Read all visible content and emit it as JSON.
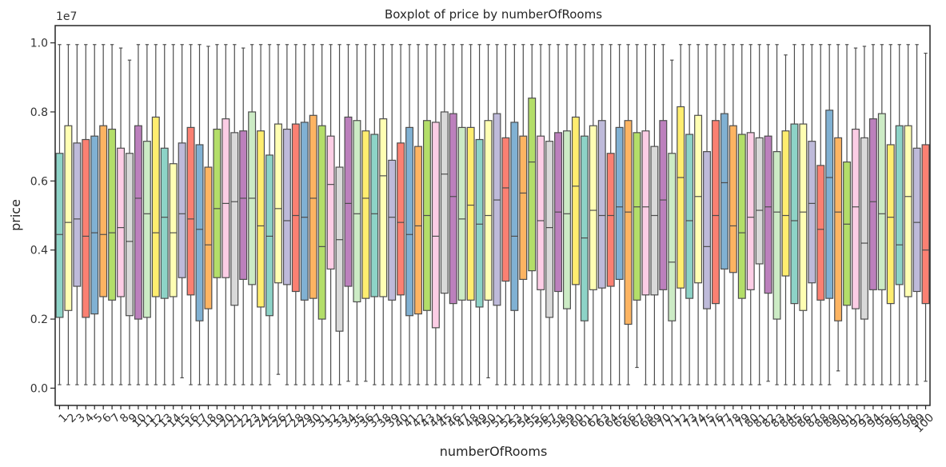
{
  "chart_data": {
    "type": "boxplot",
    "title": "Boxplot of price by numberOfRooms",
    "xlabel": "numberOfRooms",
    "ylabel": "price",
    "y_scale_note": "1e7",
    "ylim": [
      -0.05,
      1.05
    ],
    "y_ticks": [
      "0.0",
      "0.2",
      "0.4",
      "0.6",
      "0.8",
      "1.0"
    ],
    "y_tick_values": [
      0,
      0.2,
      0.4,
      0.6,
      0.8,
      1.0
    ],
    "grid": false,
    "x_tick_rotation": 45,
    "palette": [
      "#8dd3c7",
      "#ffffb3",
      "#bebada",
      "#fb8072",
      "#80b1d3",
      "#fdb462",
      "#b3de69",
      "#fccde5",
      "#d9d9d9",
      "#bc80bd",
      "#ccebc5",
      "#ffed6f"
    ],
    "categories": [
      "1",
      "2",
      "3",
      "4",
      "5",
      "6",
      "7",
      "8",
      "9",
      "10",
      "11",
      "12",
      "13",
      "14",
      "15",
      "16",
      "17",
      "18",
      "19",
      "20",
      "21",
      "22",
      "23",
      "24",
      "25",
      "26",
      "27",
      "28",
      "29",
      "30",
      "31",
      "32",
      "33",
      "34",
      "35",
      "36",
      "37",
      "38",
      "39",
      "40",
      "41",
      "42",
      "43",
      "44",
      "45",
      "46",
      "47",
      "48",
      "49",
      "50",
      "51",
      "52",
      "53",
      "54",
      "55",
      "56",
      "57",
      "58",
      "59",
      "60",
      "61",
      "62",
      "63",
      "64",
      "65",
      "66",
      "67",
      "68",
      "69",
      "70",
      "71",
      "72",
      "73",
      "74",
      "75",
      "76",
      "77",
      "78",
      "79",
      "80",
      "81",
      "82",
      "83",
      "84",
      "85",
      "86",
      "87",
      "88",
      "89",
      "90",
      "91",
      "92",
      "93",
      "94",
      "95",
      "96",
      "97",
      "98",
      "99",
      "100"
    ],
    "boxes": [
      {
        "whisker_low": 0.01,
        "q1": 0.205,
        "median": 0.445,
        "q3": 0.68,
        "whisker_high": 0.995
      },
      {
        "whisker_low": 0.01,
        "q1": 0.225,
        "median": 0.48,
        "q3": 0.76,
        "whisker_high": 0.995
      },
      {
        "whisker_low": 0.01,
        "q1": 0.295,
        "median": 0.49,
        "q3": 0.71,
        "whisker_high": 0.995
      },
      {
        "whisker_low": 0.01,
        "q1": 0.205,
        "median": 0.44,
        "q3": 0.72,
        "whisker_high": 0.995
      },
      {
        "whisker_low": 0.01,
        "q1": 0.215,
        "median": 0.45,
        "q3": 0.73,
        "whisker_high": 0.995
      },
      {
        "whisker_low": 0.01,
        "q1": 0.265,
        "median": 0.445,
        "q3": 0.76,
        "whisker_high": 0.995
      },
      {
        "whisker_low": 0.01,
        "q1": 0.255,
        "median": 0.45,
        "q3": 0.75,
        "whisker_high": 0.995
      },
      {
        "whisker_low": 0.01,
        "q1": 0.265,
        "median": 0.465,
        "q3": 0.695,
        "whisker_high": 0.985
      },
      {
        "whisker_low": 0.01,
        "q1": 0.21,
        "median": 0.425,
        "q3": 0.68,
        "whisker_high": 0.95
      },
      {
        "whisker_low": 0.01,
        "q1": 0.2,
        "median": 0.55,
        "q3": 0.76,
        "whisker_high": 0.995
      },
      {
        "whisker_low": 0.01,
        "q1": 0.205,
        "median": 0.505,
        "q3": 0.715,
        "whisker_high": 0.995
      },
      {
        "whisker_low": 0.01,
        "q1": 0.265,
        "median": 0.45,
        "q3": 0.785,
        "whisker_high": 0.995
      },
      {
        "whisker_low": 0.01,
        "q1": 0.26,
        "median": 0.495,
        "q3": 0.695,
        "whisker_high": 0.995
      },
      {
        "whisker_low": 0.01,
        "q1": 0.265,
        "median": 0.45,
        "q3": 0.65,
        "whisker_high": 0.995
      },
      {
        "whisker_low": 0.03,
        "q1": 0.32,
        "median": 0.505,
        "q3": 0.71,
        "whisker_high": 0.995
      },
      {
        "whisker_low": 0.01,
        "q1": 0.27,
        "median": 0.49,
        "q3": 0.755,
        "whisker_high": 0.995
      },
      {
        "whisker_low": 0.01,
        "q1": 0.195,
        "median": 0.46,
        "q3": 0.705,
        "whisker_high": 0.995
      },
      {
        "whisker_low": 0.01,
        "q1": 0.23,
        "median": 0.415,
        "q3": 0.64,
        "whisker_high": 0.99
      },
      {
        "whisker_low": 0.01,
        "q1": 0.32,
        "median": 0.52,
        "q3": 0.75,
        "whisker_high": 0.995
      },
      {
        "whisker_low": 0.01,
        "q1": 0.32,
        "median": 0.535,
        "q3": 0.78,
        "whisker_high": 0.995
      },
      {
        "whisker_low": 0.01,
        "q1": 0.24,
        "median": 0.54,
        "q3": 0.74,
        "whisker_high": 0.995
      },
      {
        "whisker_low": 0.01,
        "q1": 0.315,
        "median": 0.55,
        "q3": 0.745,
        "whisker_high": 0.985
      },
      {
        "whisker_low": 0.01,
        "q1": 0.3,
        "median": 0.55,
        "q3": 0.8,
        "whisker_high": 0.995
      },
      {
        "whisker_low": 0.01,
        "q1": 0.235,
        "median": 0.47,
        "q3": 0.745,
        "whisker_high": 0.995
      },
      {
        "whisker_low": 0.01,
        "q1": 0.21,
        "median": 0.44,
        "q3": 0.675,
        "whisker_high": 0.995
      },
      {
        "whisker_low": 0.04,
        "q1": 0.305,
        "median": 0.52,
        "q3": 0.765,
        "whisker_high": 0.995
      },
      {
        "whisker_low": 0.01,
        "q1": 0.3,
        "median": 0.485,
        "q3": 0.75,
        "whisker_high": 0.995
      },
      {
        "whisker_low": 0.01,
        "q1": 0.28,
        "median": 0.5,
        "q3": 0.765,
        "whisker_high": 0.995
      },
      {
        "whisker_low": 0.01,
        "q1": 0.255,
        "median": 0.495,
        "q3": 0.77,
        "whisker_high": 0.995
      },
      {
        "whisker_low": 0.01,
        "q1": 0.26,
        "median": 0.55,
        "q3": 0.79,
        "whisker_high": 0.995
      },
      {
        "whisker_low": 0.01,
        "q1": 0.2,
        "median": 0.41,
        "q3": 0.76,
        "whisker_high": 0.995
      },
      {
        "whisker_low": 0.01,
        "q1": 0.345,
        "median": 0.59,
        "q3": 0.73,
        "whisker_high": 0.995
      },
      {
        "whisker_low": 0.01,
        "q1": 0.165,
        "median": 0.43,
        "q3": 0.64,
        "whisker_high": 0.995
      },
      {
        "whisker_low": 0.02,
        "q1": 0.295,
        "median": 0.535,
        "q3": 0.785,
        "whisker_high": 0.995
      },
      {
        "whisker_low": 0.01,
        "q1": 0.25,
        "median": 0.505,
        "q3": 0.775,
        "whisker_high": 0.995
      },
      {
        "whisker_low": 0.02,
        "q1": 0.26,
        "median": 0.55,
        "q3": 0.745,
        "whisker_high": 0.995
      },
      {
        "whisker_low": 0.01,
        "q1": 0.265,
        "median": 0.505,
        "q3": 0.735,
        "whisker_high": 0.995
      },
      {
        "whisker_low": 0.01,
        "q1": 0.265,
        "median": 0.615,
        "q3": 0.78,
        "whisker_high": 0.995
      },
      {
        "whisker_low": 0.01,
        "q1": 0.255,
        "median": 0.495,
        "q3": 0.66,
        "whisker_high": 0.995
      },
      {
        "whisker_low": 0.01,
        "q1": 0.27,
        "median": 0.48,
        "q3": 0.71,
        "whisker_high": 0.995
      },
      {
        "whisker_low": 0.01,
        "q1": 0.21,
        "median": 0.445,
        "q3": 0.755,
        "whisker_high": 0.995
      },
      {
        "whisker_low": 0.01,
        "q1": 0.215,
        "median": 0.47,
        "q3": 0.7,
        "whisker_high": 0.995
      },
      {
        "whisker_low": 0.01,
        "q1": 0.225,
        "median": 0.5,
        "q3": 0.775,
        "whisker_high": 0.995
      },
      {
        "whisker_low": 0.01,
        "q1": 0.175,
        "median": 0.44,
        "q3": 0.77,
        "whisker_high": 0.995
      },
      {
        "whisker_low": 0.01,
        "q1": 0.275,
        "median": 0.62,
        "q3": 0.8,
        "whisker_high": 0.995
      },
      {
        "whisker_low": 0.01,
        "q1": 0.245,
        "median": 0.555,
        "q3": 0.795,
        "whisker_high": 0.995
      },
      {
        "whisker_low": 0.01,
        "q1": 0.255,
        "median": 0.49,
        "q3": 0.755,
        "whisker_high": 0.995
      },
      {
        "whisker_low": 0.01,
        "q1": 0.255,
        "median": 0.53,
        "q3": 0.755,
        "whisker_high": 0.995
      },
      {
        "whisker_low": 0.01,
        "q1": 0.235,
        "median": 0.475,
        "q3": 0.72,
        "whisker_high": 0.995
      },
      {
        "whisker_low": 0.03,
        "q1": 0.255,
        "median": 0.5,
        "q3": 0.775,
        "whisker_high": 0.995
      },
      {
        "whisker_low": 0.01,
        "q1": 0.24,
        "median": 0.545,
        "q3": 0.795,
        "whisker_high": 0.995
      },
      {
        "whisker_low": 0.01,
        "q1": 0.31,
        "median": 0.58,
        "q3": 0.725,
        "whisker_high": 0.995
      },
      {
        "whisker_low": 0.01,
        "q1": 0.225,
        "median": 0.44,
        "q3": 0.77,
        "whisker_high": 0.995
      },
      {
        "whisker_low": 0.01,
        "q1": 0.315,
        "median": 0.565,
        "q3": 0.73,
        "whisker_high": 0.995
      },
      {
        "whisker_low": 0.01,
        "q1": 0.34,
        "median": 0.655,
        "q3": 0.84,
        "whisker_high": 0.995
      },
      {
        "whisker_low": 0.01,
        "q1": 0.285,
        "median": 0.485,
        "q3": 0.73,
        "whisker_high": 0.995
      },
      {
        "whisker_low": 0.01,
        "q1": 0.205,
        "median": 0.465,
        "q3": 0.715,
        "whisker_high": 0.995
      },
      {
        "whisker_low": 0.01,
        "q1": 0.28,
        "median": 0.51,
        "q3": 0.74,
        "whisker_high": 0.995
      },
      {
        "whisker_low": 0.01,
        "q1": 0.23,
        "median": 0.505,
        "q3": 0.745,
        "whisker_high": 0.995
      },
      {
        "whisker_low": 0.01,
        "q1": 0.3,
        "median": 0.585,
        "q3": 0.785,
        "whisker_high": 0.995
      },
      {
        "whisker_low": 0.01,
        "q1": 0.195,
        "median": 0.435,
        "q3": 0.73,
        "whisker_high": 0.995
      },
      {
        "whisker_low": 0.01,
        "q1": 0.285,
        "median": 0.515,
        "q3": 0.76,
        "whisker_high": 0.995
      },
      {
        "whisker_low": 0.01,
        "q1": 0.29,
        "median": 0.5,
        "q3": 0.775,
        "whisker_high": 0.995
      },
      {
        "whisker_low": 0.01,
        "q1": 0.295,
        "median": 0.5,
        "q3": 0.68,
        "whisker_high": 0.995
      },
      {
        "whisker_low": 0.01,
        "q1": 0.315,
        "median": 0.525,
        "q3": 0.755,
        "whisker_high": 0.995
      },
      {
        "whisker_low": 0.01,
        "q1": 0.185,
        "median": 0.51,
        "q3": 0.775,
        "whisker_high": 0.995
      },
      {
        "whisker_low": 0.06,
        "q1": 0.255,
        "median": 0.525,
        "q3": 0.74,
        "whisker_high": 0.995
      },
      {
        "whisker_low": 0.01,
        "q1": 0.27,
        "median": 0.525,
        "q3": 0.745,
        "whisker_high": 0.995
      },
      {
        "whisker_low": 0.01,
        "q1": 0.27,
        "median": 0.5,
        "q3": 0.7,
        "whisker_high": 0.995
      },
      {
        "whisker_low": 0.01,
        "q1": 0.285,
        "median": 0.545,
        "q3": 0.775,
        "whisker_high": 0.995
      },
      {
        "whisker_low": 0.01,
        "q1": 0.195,
        "median": 0.365,
        "q3": 0.68,
        "whisker_high": 0.95
      },
      {
        "whisker_low": 0.01,
        "q1": 0.29,
        "median": 0.61,
        "q3": 0.815,
        "whisker_high": 0.995
      },
      {
        "whisker_low": 0.01,
        "q1": 0.26,
        "median": 0.485,
        "q3": 0.735,
        "whisker_high": 0.995
      },
      {
        "whisker_low": 0.01,
        "q1": 0.305,
        "median": 0.555,
        "q3": 0.79,
        "whisker_high": 0.995
      },
      {
        "whisker_low": 0.01,
        "q1": 0.23,
        "median": 0.41,
        "q3": 0.685,
        "whisker_high": 0.995
      },
      {
        "whisker_low": 0.01,
        "q1": 0.245,
        "median": 0.5,
        "q3": 0.775,
        "whisker_high": 0.995
      },
      {
        "whisker_low": 0.01,
        "q1": 0.345,
        "median": 0.595,
        "q3": 0.795,
        "whisker_high": 0.995
      },
      {
        "whisker_low": 0.01,
        "q1": 0.335,
        "median": 0.47,
        "q3": 0.76,
        "whisker_high": 0.995
      },
      {
        "whisker_low": 0.01,
        "q1": 0.26,
        "median": 0.45,
        "q3": 0.735,
        "whisker_high": 0.995
      },
      {
        "whisker_low": 0.01,
        "q1": 0.285,
        "median": 0.495,
        "q3": 0.74,
        "whisker_high": 0.995
      },
      {
        "whisker_low": 0.01,
        "q1": 0.36,
        "median": 0.515,
        "q3": 0.725,
        "whisker_high": 0.995
      },
      {
        "whisker_low": 0.02,
        "q1": 0.275,
        "median": 0.525,
        "q3": 0.73,
        "whisker_high": 0.995
      },
      {
        "whisker_low": 0.01,
        "q1": 0.2,
        "median": 0.51,
        "q3": 0.685,
        "whisker_high": 0.995
      },
      {
        "whisker_low": 0.01,
        "q1": 0.325,
        "median": 0.5,
        "q3": 0.745,
        "whisker_high": 0.965
      },
      {
        "whisker_low": 0.01,
        "q1": 0.245,
        "median": 0.485,
        "q3": 0.765,
        "whisker_high": 0.995
      },
      {
        "whisker_low": 0.01,
        "q1": 0.225,
        "median": 0.51,
        "q3": 0.765,
        "whisker_high": 0.995
      },
      {
        "whisker_low": 0.01,
        "q1": 0.305,
        "median": 0.535,
        "q3": 0.715,
        "whisker_high": 0.995
      },
      {
        "whisker_low": 0.01,
        "q1": 0.255,
        "median": 0.46,
        "q3": 0.645,
        "whisker_high": 0.995
      },
      {
        "whisker_low": 0.01,
        "q1": 0.26,
        "median": 0.61,
        "q3": 0.805,
        "whisker_high": 0.995
      },
      {
        "whisker_low": 0.05,
        "q1": 0.195,
        "median": 0.51,
        "q3": 0.725,
        "whisker_high": 0.995
      },
      {
        "whisker_low": 0.01,
        "q1": 0.24,
        "median": 0.475,
        "q3": 0.655,
        "whisker_high": 0.995
      },
      {
        "whisker_low": 0.01,
        "q1": 0.23,
        "median": 0.525,
        "q3": 0.75,
        "whisker_high": 0.985
      },
      {
        "whisker_low": 0.01,
        "q1": 0.2,
        "median": 0.42,
        "q3": 0.725,
        "whisker_high": 0.99
      },
      {
        "whisker_low": 0.01,
        "q1": 0.285,
        "median": 0.54,
        "q3": 0.78,
        "whisker_high": 0.995
      },
      {
        "whisker_low": 0.01,
        "q1": 0.285,
        "median": 0.505,
        "q3": 0.795,
        "whisker_high": 0.995
      },
      {
        "whisker_low": 0.01,
        "q1": 0.245,
        "median": 0.495,
        "q3": 0.705,
        "whisker_high": 0.995
      },
      {
        "whisker_low": 0.01,
        "q1": 0.3,
        "median": 0.415,
        "q3": 0.76,
        "whisker_high": 0.995
      },
      {
        "whisker_low": 0.01,
        "q1": 0.265,
        "median": 0.555,
        "q3": 0.76,
        "whisker_high": 0.995
      },
      {
        "whisker_low": 0.01,
        "q1": 0.28,
        "median": 0.48,
        "q3": 0.695,
        "whisker_high": 0.995
      },
      {
        "whisker_low": 0.02,
        "q1": 0.245,
        "median": 0.4,
        "q3": 0.705,
        "whisker_high": 0.97
      }
    ]
  }
}
